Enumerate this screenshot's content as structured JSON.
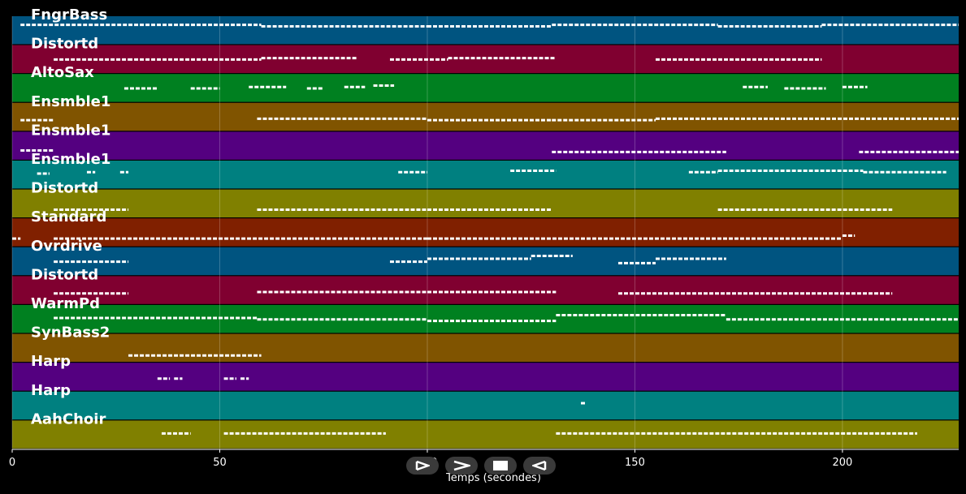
{
  "chart_data": {
    "type": "piano-roll",
    "xlabel": "Temps (secondes)",
    "xlim": [
      0,
      228
    ],
    "x_ticks": [
      0,
      50,
      100,
      150,
      200
    ],
    "grid": true,
    "tracks": [
      {
        "name": "FngrBass",
        "color": "#005480",
        "notes": [
          [
            2,
            28,
            0.3
          ],
          [
            28,
            60,
            0.3
          ],
          [
            60,
            100,
            0.35
          ],
          [
            100,
            130,
            0.35
          ],
          [
            130,
            170,
            0.3
          ],
          [
            170,
            195,
            0.35
          ],
          [
            195,
            228,
            0.3
          ]
        ]
      },
      {
        "name": "Distortd",
        "color": "#800030",
        "notes": [
          [
            10,
            28,
            0.5
          ],
          [
            28,
            60,
            0.5
          ],
          [
            60,
            83,
            0.45
          ],
          [
            91,
            105,
            0.5
          ],
          [
            105,
            131,
            0.45
          ],
          [
            155,
            195,
            0.5
          ]
        ]
      },
      {
        "name": "AltoSax",
        "color": "#008020",
        "notes": [
          [
            27,
            35,
            0.5
          ],
          [
            43,
            50,
            0.5
          ],
          [
            57,
            66,
            0.45
          ],
          [
            71,
            75,
            0.5
          ],
          [
            80,
            85,
            0.45
          ],
          [
            87,
            92,
            0.4
          ],
          [
            176,
            182,
            0.45
          ],
          [
            186,
            196,
            0.5
          ],
          [
            200,
            206,
            0.45
          ]
        ]
      },
      {
        "name": "Ensmble1",
        "color": "#805400",
        "notes": [
          [
            2,
            10,
            0.6
          ],
          [
            59,
            100,
            0.55
          ],
          [
            100,
            130,
            0.6
          ],
          [
            130,
            155,
            0.6
          ],
          [
            155,
            228,
            0.55
          ]
        ]
      },
      {
        "name": "Ensmble1",
        "color": "#540080",
        "notes": [
          [
            2,
            10,
            0.65
          ],
          [
            130,
            172,
            0.7
          ],
          [
            204,
            228,
            0.7
          ]
        ]
      },
      {
        "name": "Ensmble1",
        "color": "#008080",
        "notes": [
          [
            6,
            9,
            0.45
          ],
          [
            18,
            20,
            0.4
          ],
          [
            26,
            28,
            0.4
          ],
          [
            93,
            100,
            0.4
          ],
          [
            120,
            131,
            0.35
          ],
          [
            163,
            170,
            0.4
          ],
          [
            170,
            205,
            0.35
          ],
          [
            205,
            225,
            0.4
          ]
        ]
      },
      {
        "name": "Distortd",
        "color": "#808000",
        "notes": [
          [
            10,
            28,
            0.7
          ],
          [
            59,
            100,
            0.7
          ],
          [
            100,
            130,
            0.7
          ],
          [
            170,
            212,
            0.7
          ]
        ]
      },
      {
        "name": "Standard",
        "color": "#802000",
        "notes": [
          [
            0,
            2,
            0.7
          ],
          [
            10,
            100,
            0.7
          ],
          [
            100,
            200,
            0.7
          ],
          [
            200,
            203,
            0.6
          ]
        ]
      },
      {
        "name": "Ovrdrive",
        "color": "#005480",
        "notes": [
          [
            10,
            28,
            0.5
          ],
          [
            91,
            100,
            0.5
          ],
          [
            100,
            125,
            0.4
          ],
          [
            125,
            135,
            0.3
          ],
          [
            146,
            155,
            0.55
          ],
          [
            155,
            172,
            0.4
          ]
        ]
      },
      {
        "name": "Distortd",
        "color": "#800030",
        "notes": [
          [
            10,
            28,
            0.6
          ],
          [
            59,
            100,
            0.55
          ],
          [
            100,
            131,
            0.55
          ],
          [
            146,
            212,
            0.6
          ]
        ]
      },
      {
        "name": "WarmPd",
        "color": "#008020",
        "notes": [
          [
            10,
            59,
            0.45
          ],
          [
            59,
            100,
            0.5
          ],
          [
            100,
            131,
            0.55
          ],
          [
            131,
            172,
            0.35
          ],
          [
            172,
            228,
            0.5
          ]
        ]
      },
      {
        "name": "SynBass2",
        "color": "#805400",
        "notes": [
          [
            28,
            60,
            0.75
          ]
        ]
      },
      {
        "name": "Harp",
        "color": "#540080",
        "notes": [
          [
            35,
            38,
            0.55
          ],
          [
            39,
            41,
            0.55
          ],
          [
            51,
            54,
            0.55
          ],
          [
            55,
            57,
            0.55
          ]
        ]
      },
      {
        "name": "Harp",
        "color": "#008080",
        "notes": [
          [
            137,
            138,
            0.4
          ]
        ]
      },
      {
        "name": "AahChoir",
        "color": "#808000",
        "notes": [
          [
            36,
            43,
            0.45
          ],
          [
            51,
            90,
            0.45
          ],
          [
            131,
            175,
            0.45
          ],
          [
            175,
            218,
            0.45
          ]
        ]
      }
    ]
  },
  "controls": [
    {
      "name": "play-button",
      "icon": "play-icon"
    },
    {
      "name": "forward-button",
      "icon": "chevron-right-icon"
    },
    {
      "name": "stop-button",
      "icon": "stop-icon"
    },
    {
      "name": "back-button",
      "icon": "back-icon"
    }
  ]
}
